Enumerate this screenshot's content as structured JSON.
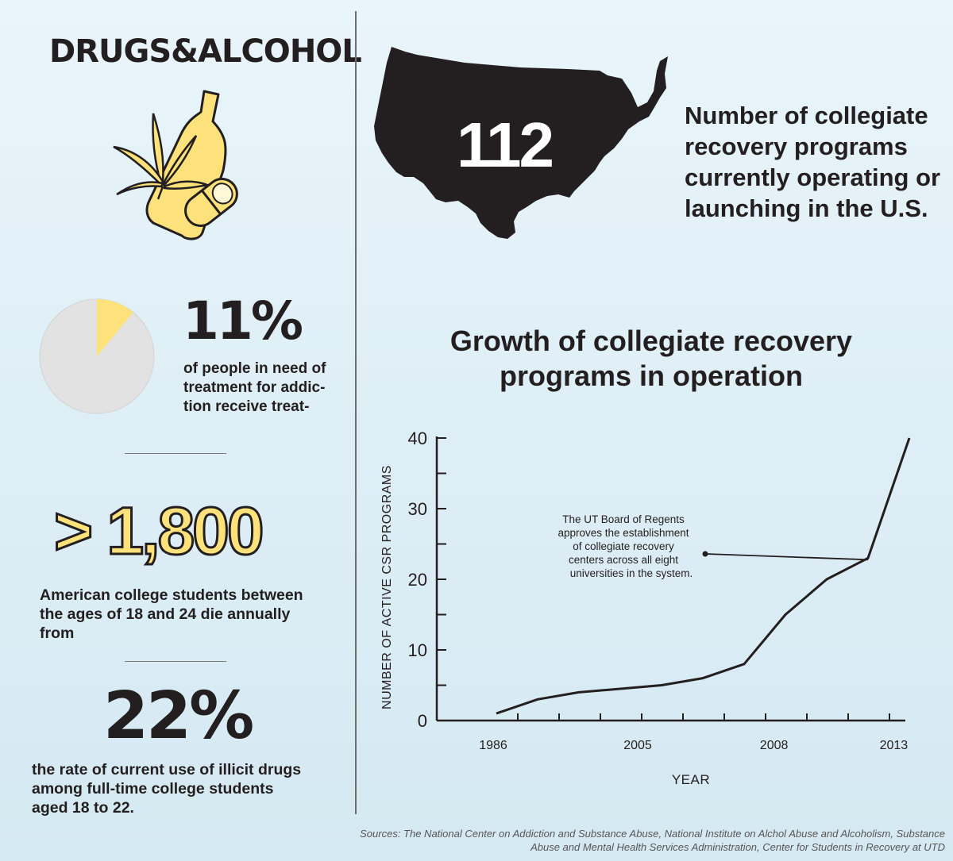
{
  "header": {
    "title": "DRUGS&ALCOHOL"
  },
  "icon_names": [
    "cannabis-leaf-icon",
    "bottle-icon",
    "pill-icon",
    "us-map-icon"
  ],
  "colors": {
    "accent_yellow": "#fde17a",
    "dark": "#231f20",
    "pie_gray": "#e2e2e2"
  },
  "stats": {
    "programs": {
      "value": "112",
      "caption": "Number of collegiate recovery programs currently operating or launching in the U.S."
    },
    "treatment": {
      "value": "11%",
      "fraction": 0.11,
      "caption_lines": [
        "of people in need of",
        "treatment for addic-",
        "tion receive treat-"
      ]
    },
    "deaths": {
      "value": "> 1,800",
      "caption_lines": [
        "American college students between",
        "the ages of 18 and 24 die annually",
        "from"
      ]
    },
    "drug_use": {
      "value": "22%",
      "caption_lines": [
        "the rate of current use of illicit drugs",
        "among full-time college students",
        "aged 18 to 22."
      ]
    }
  },
  "chart_data": {
    "type": "line",
    "title": "Growth of collegiate recovery programs in operation",
    "xlabel": "YEAR",
    "ylabel": "NUMBER OF  ACTIVE CSR PROGRAMS",
    "ylim": [
      0,
      40
    ],
    "yticks": [
      0,
      10,
      20,
      30,
      40
    ],
    "xticklabels": [
      "1986",
      "2005",
      "2008",
      "2013"
    ],
    "series": [
      {
        "name": "Active CSR programs",
        "x": [
          0,
          1,
          2,
          3,
          4,
          5,
          6,
          7,
          8,
          9,
          10
        ],
        "values": [
          1,
          3,
          4,
          4.5,
          5,
          6,
          8,
          15,
          20,
          23,
          40
        ]
      }
    ],
    "annotation": {
      "lines": [
        "The UT Board of Regents",
        "approves the establishment",
        "of collegiate recovery",
        "centers across all eight",
        "universities in the system."
      ],
      "target_index": 9
    }
  },
  "sources": "Sources: The National Center on Addiction and Substance Abuse, National Institute on Alchol Abuse and Alcoholism, Substance Abuse and Mental Health Services Administration, Center for Students in Recovery at UTD"
}
